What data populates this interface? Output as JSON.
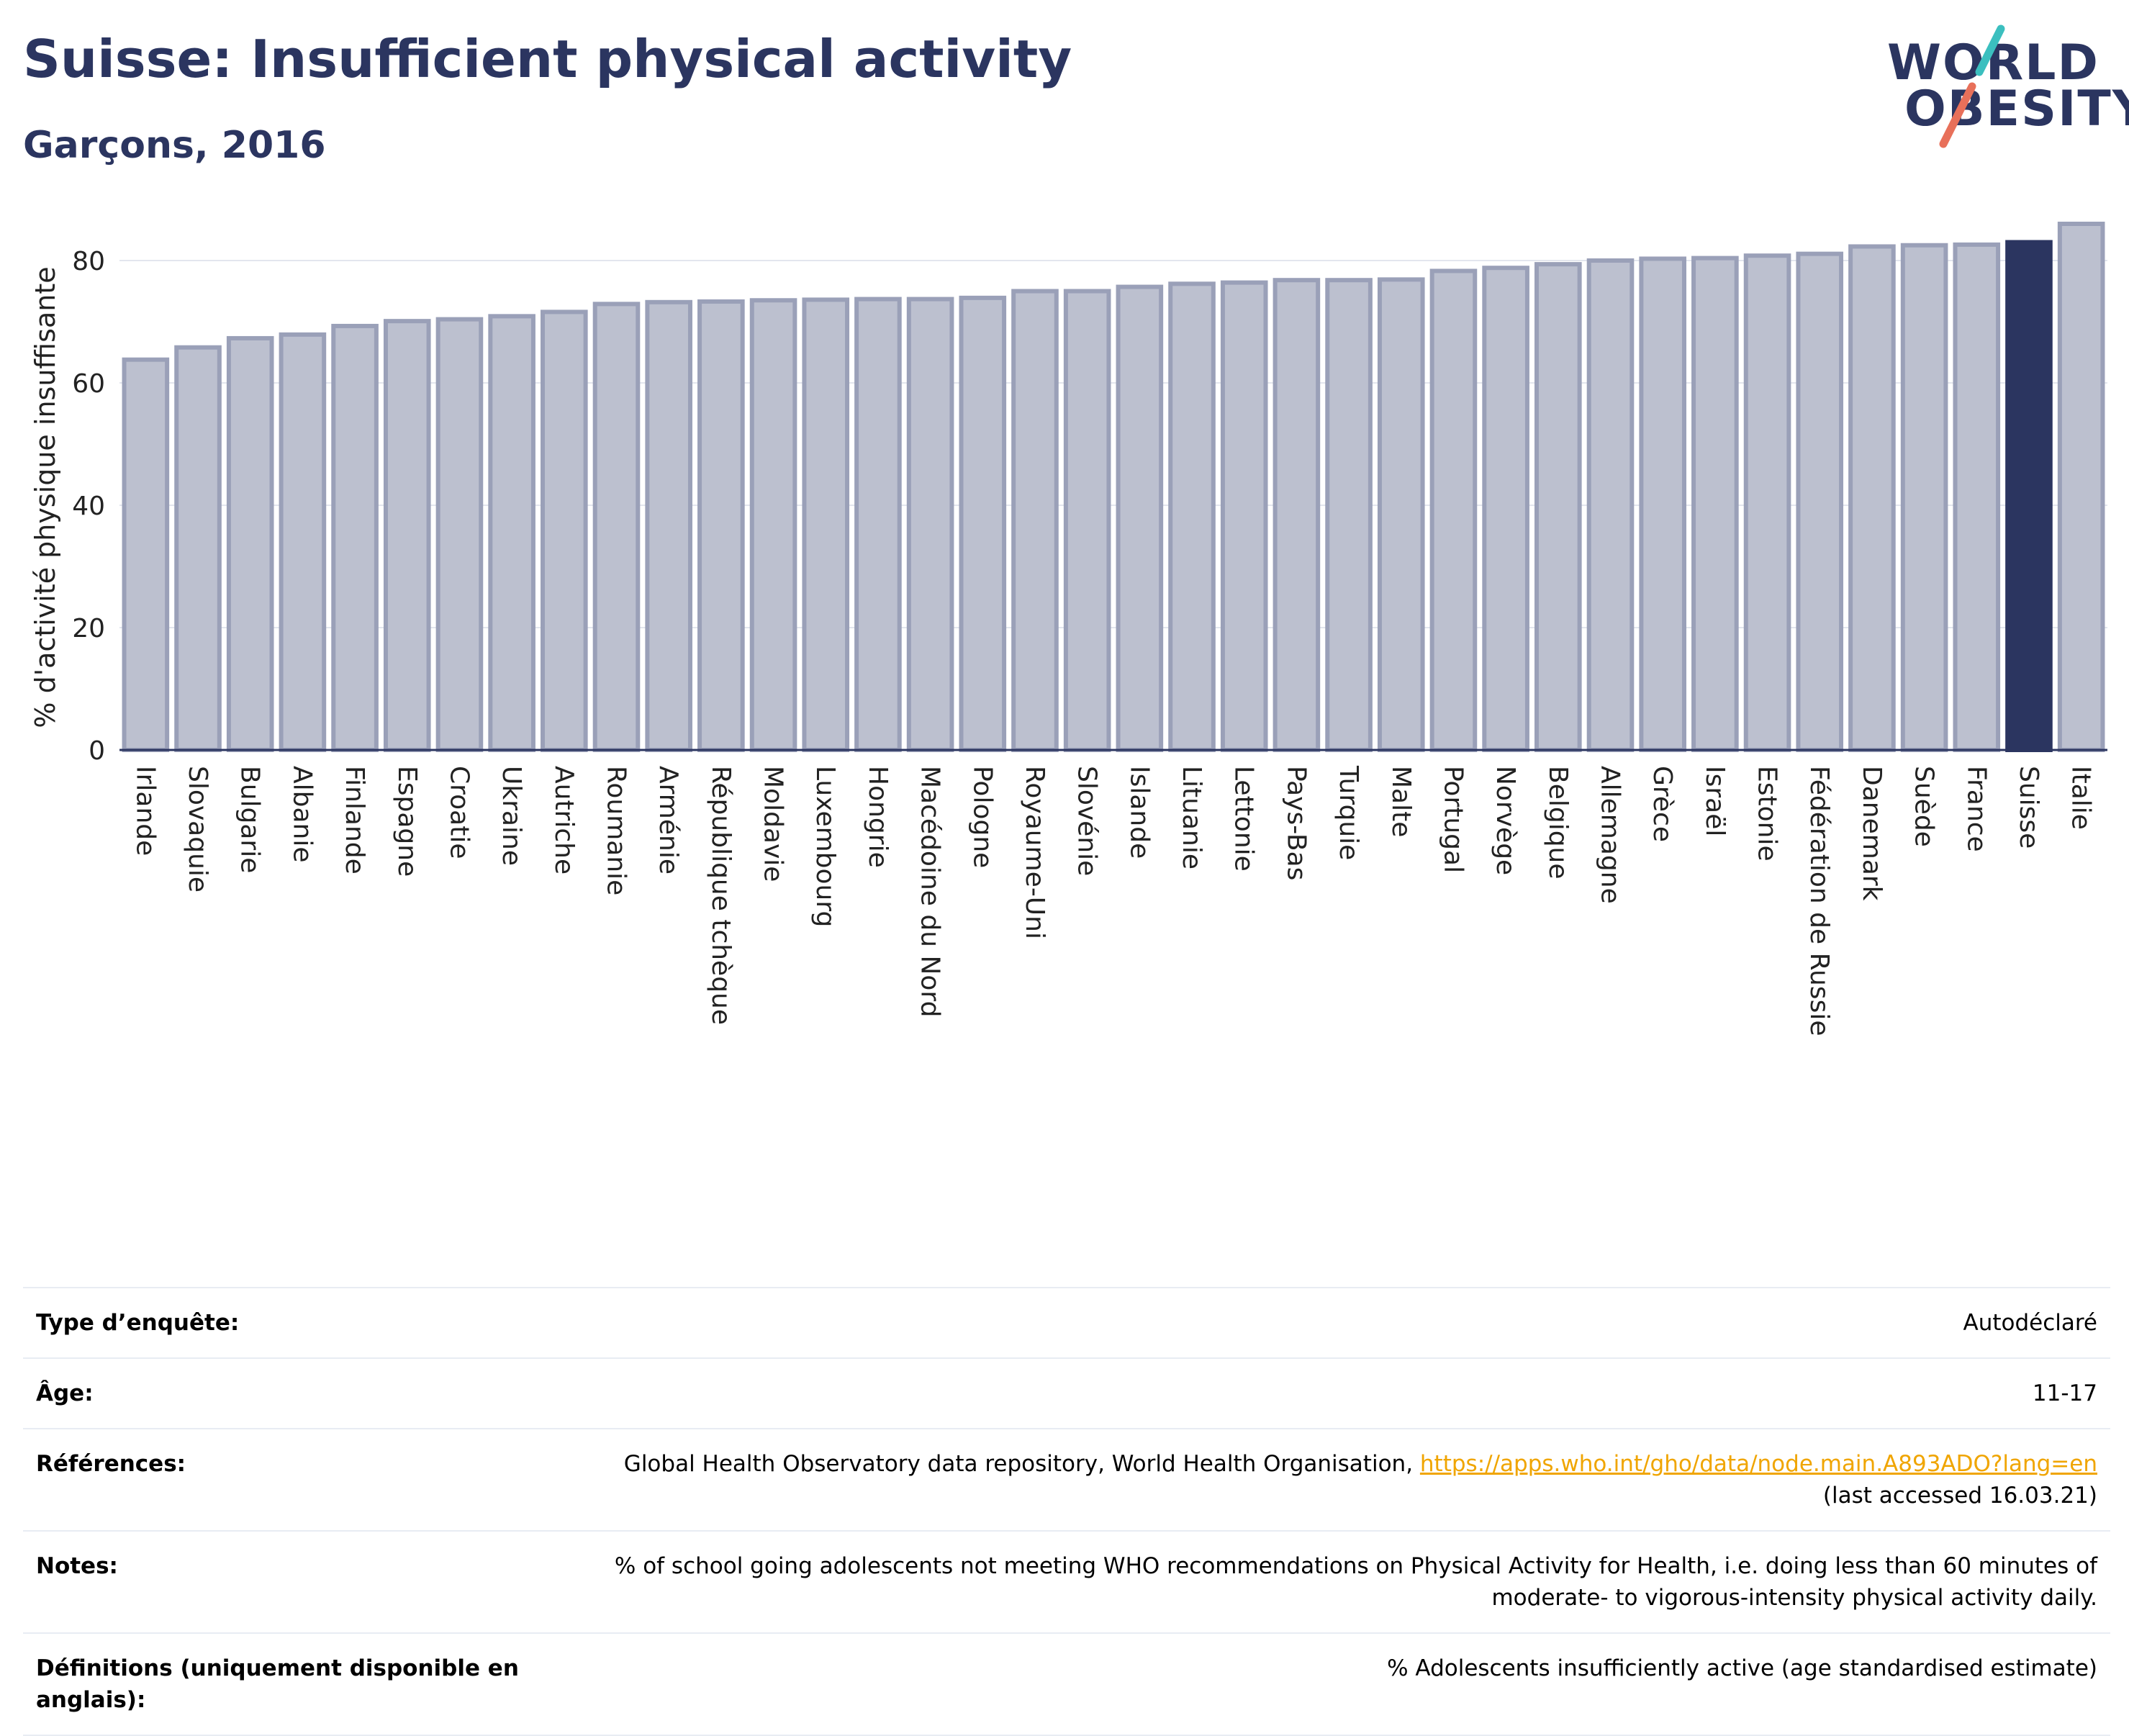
{
  "header": {
    "title": "Suisse: Insufficient physical activity",
    "subtitle": "Garçons, 2016"
  },
  "logo": {
    "line1": "WORLD",
    "line2": "OBESITY",
    "slash_colors": [
      "#3bbfbf",
      "#e8705a"
    ]
  },
  "colors": {
    "bar": "#bcc0cf",
    "bar_border": "#9aa0b8",
    "highlight": "#2b3560",
    "grid": "#e3e6ee",
    "axis": "#2b3560"
  },
  "chart_data": {
    "type": "bar",
    "title": "Suisse: Insufficient physical activity",
    "subtitle": "Garçons, 2016",
    "xlabel": "",
    "ylabel": "% d'activité physique insuffisante",
    "ylim": [
      0,
      90
    ],
    "yticks": [
      0,
      20,
      40,
      60,
      80
    ],
    "grid": true,
    "highlight": "Suisse",
    "categories": [
      "Irlande",
      "Slovaquie",
      "Bulgarie",
      "Albanie",
      "Finlande",
      "Espagne",
      "Croatie",
      "Ukraine",
      "Autriche",
      "Roumanie",
      "Arménie",
      "République tchèque",
      "Moldavie",
      "Luxembourg",
      "Hongrie",
      "Macédoine du Nord",
      "Pologne",
      "Royaume-Uni",
      "Slovénie",
      "Islande",
      "Lituanie",
      "Lettonie",
      "Pays-Bas",
      "Turquie",
      "Malte",
      "Portugal",
      "Norvège",
      "Belgique",
      "Allemagne",
      "Grèce",
      "Israël",
      "Estonie",
      "Fédération de Russie",
      "Danemark",
      "Suède",
      "France",
      "Suisse",
      "Italie"
    ],
    "values": [
      63.8,
      65.8,
      67.3,
      67.9,
      69.3,
      70.1,
      70.4,
      70.9,
      71.6,
      72.9,
      73.2,
      73.3,
      73.5,
      73.6,
      73.7,
      73.7,
      73.9,
      75.0,
      75.0,
      75.7,
      76.2,
      76.4,
      76.8,
      76.8,
      76.9,
      78.3,
      78.8,
      79.4,
      80.0,
      80.3,
      80.4,
      80.8,
      81.1,
      82.3,
      82.5,
      82.6,
      83.0,
      86.0
    ]
  },
  "info_table": [
    {
      "label": "Type d’enquête:",
      "value": "Autodéclaré"
    },
    {
      "label": "Âge:",
      "value": "11-17"
    },
    {
      "label": "Références:",
      "value": "Global Health Observatory data repository, World Health Organisation,",
      "link": "https://apps.who.int/gho/data/node.main.A893ADO?lang=en",
      "value2": "(last accessed 16.03.21)"
    },
    {
      "label": "Notes:",
      "value": "% of school going adolescents not meeting WHO recommendations on Physical Activity for Health, i.e. doing less than 60 minutes of moderate- to vigorous-intensity physical activity daily."
    },
    {
      "label": "Définitions (uniquement disponible en anglais):",
      "value": "% Adolescents insufficiently active (age standardised estimate)"
    }
  ]
}
